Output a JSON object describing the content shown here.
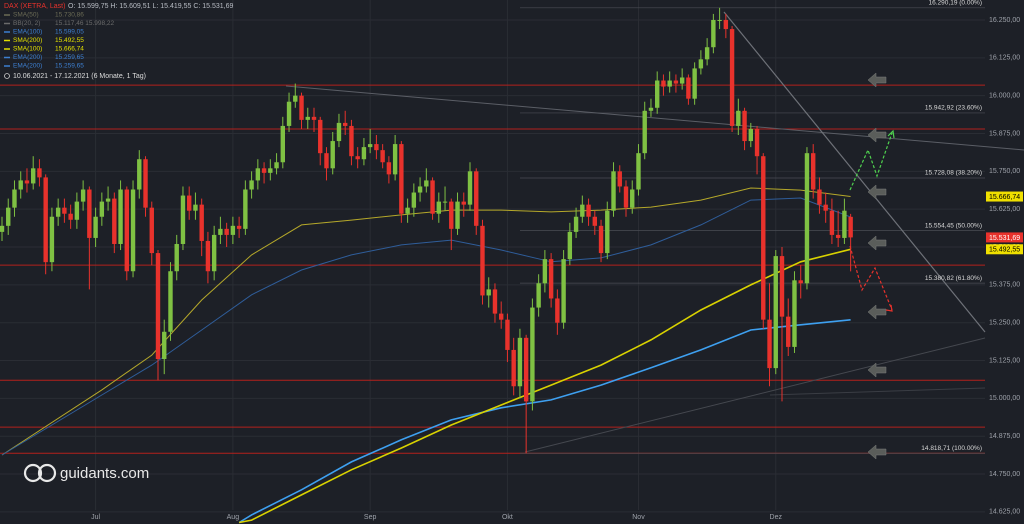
{
  "chart_data": {
    "type": "candlestick",
    "title": "DAX (XETRA, Last)",
    "subtitle": "O: 15.599,75  H: 15.609,51  L: 15.419,55  C: 15.531,69",
    "date_range": "10.06.2021 - 17.12.2021  (6 Monate, 1 Tag)",
    "brand": "guidants.com",
    "up_color": "#7fc143",
    "down_color": "#e8322c",
    "ylim": [
      14585,
      16316
    ],
    "yticks": [
      {
        "value": 14625,
        "label": "14.625,00"
      },
      {
        "value": 14750,
        "label": "14.750,00"
      },
      {
        "value": 14875,
        "label": "14.875,00"
      },
      {
        "value": 15000,
        "label": "15.000,00"
      },
      {
        "value": 15125,
        "label": "15.125,00"
      },
      {
        "value": 15250,
        "label": "15.250,00"
      },
      {
        "value": 15375,
        "label": "15.375,00"
      },
      {
        "value": 15500,
        "label": "15.500,00"
      },
      {
        "value": 15625,
        "label": "15.625,00"
      },
      {
        "value": 15750,
        "label": "15.750,00"
      },
      {
        "value": 15875,
        "label": "15.875,00"
      },
      {
        "value": 16000,
        "label": "16.000,00"
      },
      {
        "value": 16125,
        "label": "16.125,00"
      },
      {
        "value": 16250,
        "label": "16.250,00"
      }
    ],
    "xticks": [
      {
        "value": 15,
        "label": "Jul"
      },
      {
        "value": 37,
        "label": "Aug"
      },
      {
        "value": 59,
        "label": "Sep"
      },
      {
        "value": 81,
        "label": "Okt"
      },
      {
        "value": 102,
        "label": "Nov"
      },
      {
        "value": 124,
        "label": "Dez"
      }
    ],
    "ohlc": [
      [
        15550,
        15600,
        15520,
        15570
      ],
      [
        15570,
        15660,
        15540,
        15630
      ],
      [
        15630,
        15720,
        15600,
        15690
      ],
      [
        15690,
        15750,
        15660,
        15720
      ],
      [
        15720,
        15760,
        15680,
        15710
      ],
      [
        15710,
        15800,
        15690,
        15760
      ],
      [
        15760,
        15790,
        15700,
        15730
      ],
      [
        15730,
        15740,
        15410,
        15450
      ],
      [
        15450,
        15630,
        15420,
        15600
      ],
      [
        15600,
        15660,
        15570,
        15630
      ],
      [
        15630,
        15660,
        15580,
        15610
      ],
      [
        15610,
        15640,
        15560,
        15590
      ],
      [
        15590,
        15680,
        15560,
        15650
      ],
      [
        15650,
        15720,
        15620,
        15690
      ],
      [
        15690,
        15700,
        15360,
        15530
      ],
      [
        15530,
        15630,
        15500,
        15600
      ],
      [
        15600,
        15680,
        15570,
        15650
      ],
      [
        15650,
        15700,
        15620,
        15660
      ],
      [
        15660,
        15680,
        15480,
        15510
      ],
      [
        15510,
        15720,
        15490,
        15690
      ],
      [
        15690,
        15700,
        15390,
        15420
      ],
      [
        15420,
        15720,
        15400,
        15690
      ],
      [
        15690,
        15820,
        15660,
        15790
      ],
      [
        15790,
        15800,
        15600,
        15630
      ],
      [
        15630,
        15650,
        15440,
        15480
      ],
      [
        15480,
        15490,
        15060,
        15130
      ],
      [
        15130,
        15260,
        15080,
        15220
      ],
      [
        15220,
        15450,
        15190,
        15420
      ],
      [
        15420,
        15540,
        15390,
        15510
      ],
      [
        15510,
        15700,
        15490,
        15670
      ],
      [
        15670,
        15700,
        15590,
        15620
      ],
      [
        15620,
        15680,
        15590,
        15640
      ],
      [
        15640,
        15660,
        15470,
        15520
      ],
      [
        15520,
        15550,
        15380,
        15420
      ],
      [
        15420,
        15570,
        15390,
        15540
      ],
      [
        15540,
        15600,
        15510,
        15560
      ],
      [
        15560,
        15580,
        15500,
        15540
      ],
      [
        15540,
        15600,
        15510,
        15570
      ],
      [
        15570,
        15600,
        15530,
        15560
      ],
      [
        15560,
        15720,
        15540,
        15690
      ],
      [
        15690,
        15750,
        15660,
        15720
      ],
      [
        15720,
        15790,
        15690,
        15760
      ],
      [
        15760,
        15780,
        15710,
        15745
      ],
      [
        15745,
        15790,
        15720,
        15760
      ],
      [
        15760,
        15810,
        15740,
        15780
      ],
      [
        15780,
        15930,
        15760,
        15900
      ],
      [
        15900,
        16010,
        15880,
        15980
      ],
      [
        15980,
        16040,
        15960,
        16000
      ],
      [
        16000,
        16010,
        15890,
        15920
      ],
      [
        15920,
        15960,
        15890,
        15930
      ],
      [
        15930,
        15960,
        15880,
        15920
      ],
      [
        15920,
        15930,
        15770,
        15810
      ],
      [
        15810,
        15830,
        15720,
        15760
      ],
      [
        15760,
        15880,
        15740,
        15850
      ],
      [
        15850,
        15940,
        15830,
        15910
      ],
      [
        15910,
        15950,
        15870,
        15900
      ],
      [
        15900,
        15920,
        15770,
        15800
      ],
      [
        15800,
        15830,
        15760,
        15790
      ],
      [
        15790,
        15860,
        15770,
        15830
      ],
      [
        15830,
        15890,
        15810,
        15840
      ],
      [
        15840,
        15870,
        15790,
        15820
      ],
      [
        15820,
        15840,
        15760,
        15780
      ],
      [
        15780,
        15800,
        15710,
        15740
      ],
      [
        15740,
        15870,
        15720,
        15840
      ],
      [
        15840,
        15850,
        15580,
        15610
      ],
      [
        15610,
        15660,
        15580,
        15630
      ],
      [
        15630,
        15710,
        15600,
        15680
      ],
      [
        15680,
        15730,
        15650,
        15700
      ],
      [
        15700,
        15760,
        15680,
        15720
      ],
      [
        15720,
        15730,
        15590,
        15610
      ],
      [
        15610,
        15680,
        15580,
        15650
      ],
      [
        15650,
        15700,
        15620,
        15650
      ],
      [
        15650,
        15660,
        15490,
        15560
      ],
      [
        15560,
        15680,
        15540,
        15650
      ],
      [
        15650,
        15680,
        15600,
        15640
      ],
      [
        15640,
        15780,
        15620,
        15750
      ],
      [
        15750,
        15760,
        15540,
        15570
      ],
      [
        15570,
        15590,
        15310,
        15340
      ],
      [
        15340,
        15400,
        15300,
        15360
      ],
      [
        15360,
        15380,
        15250,
        15280
      ],
      [
        15280,
        15320,
        15230,
        15260
      ],
      [
        15260,
        15280,
        15120,
        15160
      ],
      [
        15160,
        15200,
        15010,
        15040
      ],
      [
        15040,
        15230,
        15000,
        15200
      ],
      [
        15200,
        15210,
        14818.71,
        14990
      ],
      [
        14990,
        15330,
        14960,
        15300
      ],
      [
        15300,
        15410,
        15270,
        15380
      ],
      [
        15380,
        15490,
        15350,
        15460
      ],
      [
        15460,
        15480,
        15300,
        15330
      ],
      [
        15330,
        15360,
        15210,
        15250
      ],
      [
        15250,
        15490,
        15230,
        15460
      ],
      [
        15460,
        15580,
        15440,
        15550
      ],
      [
        15550,
        15630,
        15530,
        15600
      ],
      [
        15600,
        15670,
        15580,
        15640
      ],
      [
        15640,
        15660,
        15570,
        15600
      ],
      [
        15600,
        15620,
        15540,
        15570
      ],
      [
        15570,
        15590,
        15450,
        15480
      ],
      [
        15480,
        15650,
        15460,
        15620
      ],
      [
        15620,
        15780,
        15600,
        15750
      ],
      [
        15750,
        15770,
        15680,
        15700
      ],
      [
        15700,
        15720,
        15600,
        15630
      ],
      [
        15630,
        15720,
        15610,
        15690
      ],
      [
        15690,
        15840,
        15670,
        15810
      ],
      [
        15810,
        15980,
        15790,
        15950
      ],
      [
        15950,
        15990,
        15930,
        15960
      ],
      [
        15960,
        16080,
        15940,
        16050
      ],
      [
        16050,
        16070,
        16000,
        16030
      ],
      [
        16030,
        16080,
        16010,
        16050
      ],
      [
        16050,
        16070,
        16010,
        16040
      ],
      [
        16040,
        16090,
        16020,
        16060
      ],
      [
        16060,
        16070,
        15970,
        15990
      ],
      [
        15990,
        16110,
        15970,
        16090
      ],
      [
        16090,
        16150,
        16070,
        16120
      ],
      [
        16120,
        16190,
        16100,
        16160
      ],
      [
        16160,
        16270,
        16140,
        16250
      ],
      [
        16250,
        16290.19,
        16220,
        16250
      ],
      [
        16250,
        16270,
        16190,
        16220
      ],
      [
        16220,
        16230,
        15880,
        15900
      ],
      [
        15900,
        15990,
        15870,
        15950
      ],
      [
        15950,
        15960,
        15820,
        15850
      ],
      [
        15850,
        15910,
        15830,
        15890
      ],
      [
        15890,
        15900,
        15740,
        15800
      ],
      [
        15800,
        15810,
        15230,
        15260
      ],
      [
        15260,
        15380,
        15040,
        15100
      ],
      [
        15100,
        15490,
        15080,
        15470
      ],
      [
        15470,
        15500,
        14990,
        15270
      ],
      [
        15270,
        15330,
        15140,
        15170
      ],
      [
        15170,
        15420,
        15150,
        15390
      ],
      [
        15390,
        15440,
        15330,
        15380
      ],
      [
        15380,
        15830,
        15360,
        15810
      ],
      [
        15810,
        15840,
        15660,
        15690
      ],
      [
        15690,
        15730,
        15610,
        15640
      ],
      [
        15640,
        15680,
        15580,
        15620
      ],
      [
        15620,
        15660,
        15510,
        15540
      ],
      [
        15540,
        15620,
        15500,
        15530
      ],
      [
        15530,
        15660,
        15510,
        15620
      ],
      [
        15599.75,
        15609.51,
        15419.55,
        15531.69
      ]
    ],
    "legend": [
      {
        "name": "SMA(50)",
        "text": "15.730,86",
        "color": "#6b6b55"
      },
      {
        "name": "BB(20, 2)",
        "text": "15.117,46  15.998,22",
        "color": "#6b6b6b"
      },
      {
        "name": "EMA(100)",
        "text": "15.599,05",
        "color": "#3d7fd0"
      },
      {
        "name": "SMA(200)",
        "text": "15.492,55",
        "color": "#e3e000"
      },
      {
        "name": "SMA(100)",
        "text": "15.666,74",
        "color": "#e3e000"
      },
      {
        "name": "EMA(200)",
        "text": "15.259,65",
        "color": "#3d7fd0"
      },
      {
        "name": "EMA(200)",
        "text": "15.259,65",
        "color": "#3d7fd0"
      }
    ],
    "series": [
      {
        "color": "#b5a82a",
        "x": [
          0,
          16,
          24,
          32,
          40,
          48,
          56,
          64,
          72,
          80,
          88,
          96,
          104,
          112,
          120,
          128,
          136
        ],
        "values": [
          14813,
          15028,
          15143,
          15325,
          15474,
          15573,
          15589,
          15606,
          15622,
          15622,
          15616,
          15622,
          15632,
          15655,
          15695,
          15688,
          15666.74
        ]
      },
      {
        "color": "#2f5d9a",
        "x": [
          0,
          16,
          24,
          32,
          40,
          48,
          56,
          64,
          72,
          80,
          88,
          96,
          104,
          112,
          120,
          128,
          136
        ],
        "values": [
          14813,
          15011,
          15110,
          15226,
          15342,
          15424,
          15474,
          15507,
          15523,
          15490,
          15451,
          15464,
          15507,
          15573,
          15655,
          15662,
          15599.05
        ]
      },
      {
        "color": "#3ea0f0",
        "x": [
          38,
          40,
          48,
          56,
          64,
          72,
          80,
          88,
          96,
          104,
          112,
          120,
          128,
          136
        ],
        "values": [
          14590,
          14615,
          14698,
          14790,
          14863,
          14929,
          14969,
          14995,
          15044,
          15101,
          15160,
          15226,
          15243,
          15259.65
        ]
      },
      {
        "color": "#d9d200",
        "x": [
          38,
          40,
          48,
          56,
          64,
          72,
          80,
          88,
          96,
          104,
          112,
          120,
          128,
          136
        ],
        "values": [
          14590,
          14598,
          14681,
          14764,
          14836,
          14912,
          14978,
          15044,
          15110,
          15193,
          15292,
          15375,
          15451,
          15492.55
        ]
      }
    ],
    "levels": [
      16035,
      15890,
      15440,
      15060,
      14905,
      14818.71
    ],
    "fib": [
      {
        "value": 16290.19,
        "label": "16.290,19 (0.00%)"
      },
      {
        "value": 15942.92,
        "label": "15.942,92 (23.60%)"
      },
      {
        "value": 15728.08,
        "label": "15.728,08 (38.20%)"
      },
      {
        "value": 15554.45,
        "label": "15.554,45 (50.00%)"
      },
      {
        "value": 15380.82,
        "label": "15.380,82 (61.80%)"
      },
      {
        "value": 14818.71,
        "label": "14.818,71 (100.00%)"
      }
    ],
    "price_tags": [
      {
        "value": 15666.74,
        "label": "15.666,74",
        "color": "#f0e000",
        "text_color": "#000000"
      },
      {
        "value": 15531.69,
        "label": "15.531,69",
        "color": "#e8322c",
        "text_color": "#ffffff"
      },
      {
        "value": 15492.55,
        "label": "15.492,55",
        "color": "#f0e000",
        "text_color": "#000000"
      }
    ]
  }
}
